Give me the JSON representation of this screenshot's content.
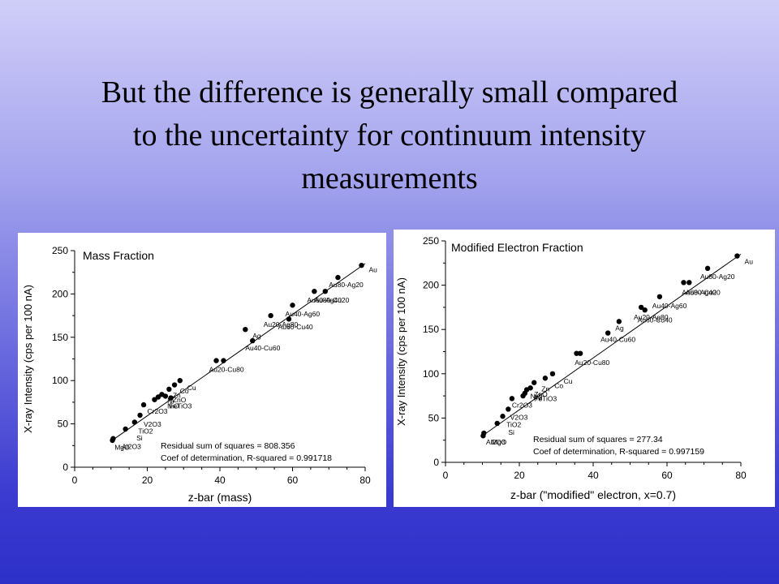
{
  "slide": {
    "title_lines": [
      "But the difference is generally small compared",
      "to the uncertainty for continuum intensity",
      "measurements"
    ]
  },
  "chart_data": [
    {
      "type": "scatter",
      "title": "Mass Fraction",
      "xlabel": "z-bar (mass)",
      "ylabel": "X-ray Intensity (cps per 100 nA)",
      "xlim": [
        0,
        80
      ],
      "ylim": [
        0,
        250
      ],
      "xticks": [
        0,
        20,
        40,
        60,
        80
      ],
      "yticks": [
        0,
        50,
        100,
        150,
        200,
        250
      ],
      "grid": false,
      "points": [
        {
          "x": 10.4,
          "y": 31
        },
        {
          "x": 10.6,
          "y": 33
        },
        {
          "x": 14,
          "y": 44
        },
        {
          "x": 16.5,
          "y": 52
        },
        {
          "x": 18,
          "y": 60
        },
        {
          "x": 19,
          "y": 72
        },
        {
          "x": 22,
          "y": 78
        },
        {
          "x": 23,
          "y": 81
        },
        {
          "x": 24,
          "y": 84
        },
        {
          "x": 25,
          "y": 82
        },
        {
          "x": 26,
          "y": 90
        },
        {
          "x": 26.5,
          "y": 80
        },
        {
          "x": 27.5,
          "y": 95
        },
        {
          "x": 29,
          "y": 100
        },
        {
          "x": 39,
          "y": 123
        },
        {
          "x": 41,
          "y": 123
        },
        {
          "x": 47,
          "y": 159
        },
        {
          "x": 49,
          "y": 146
        },
        {
          "x": 54,
          "y": 175
        },
        {
          "x": 59,
          "y": 171
        },
        {
          "x": 60,
          "y": 187
        },
        {
          "x": 66,
          "y": 203
        },
        {
          "x": 69,
          "y": 203
        },
        {
          "x": 72.5,
          "y": 219
        },
        {
          "x": 79,
          "y": 233
        }
      ],
      "fit_line": {
        "x": [
          10,
          80
        ],
        "y": [
          30,
          235
        ]
      },
      "labels": [
        {
          "text": "Au",
          "x": 81,
          "y": 225
        },
        {
          "text": "Au80-Ag20",
          "x": 70,
          "y": 208
        },
        {
          "text": "Au60-Ag40",
          "x": 64,
          "y": 190
        },
        {
          "text": "Au80-Cu20",
          "x": 66,
          "y": 190
        },
        {
          "text": "Au40-Ag60",
          "x": 58,
          "y": 174
        },
        {
          "text": "Au20-Ag80",
          "x": 52,
          "y": 162
        },
        {
          "text": "Au60-Cu40",
          "x": 56,
          "y": 159
        },
        {
          "text": "Ag",
          "x": 49,
          "y": 149
        },
        {
          "text": "Au40-Cu60",
          "x": 47,
          "y": 135
        },
        {
          "text": "Au20-Cu80",
          "x": 37,
          "y": 110
        },
        {
          "text": "Cu",
          "x": 31,
          "y": 89
        },
        {
          "text": "Co",
          "x": 29,
          "y": 85
        },
        {
          "text": "Zn",
          "x": 27,
          "y": 80
        },
        {
          "text": "ZnO",
          "x": 27,
          "y": 75
        },
        {
          "text": "Ni",
          "x": 25.5,
          "y": 74
        },
        {
          "text": "Cr2O3",
          "x": 20,
          "y": 62
        },
        {
          "text": "NiO",
          "x": 25.5,
          "y": 68
        },
        {
          "text": "FeTiO3",
          "x": 26,
          "y": 68
        },
        {
          "text": "V2O3",
          "x": 19,
          "y": 47
        },
        {
          "text": "TiO2",
          "x": 17.5,
          "y": 39
        },
        {
          "text": "Si",
          "x": 17,
          "y": 31
        },
        {
          "text": "Al2O3",
          "x": 13,
          "y": 21
        },
        {
          "text": "MgO",
          "x": 11,
          "y": 20
        }
      ],
      "annotations": [
        "Residual sum of squares = 808.356",
        "Coef of determination, R-squared = 0.991718"
      ]
    },
    {
      "type": "scatter",
      "title": "Modified Electron Fraction",
      "xlabel": "z-bar (\"modified\" electron, x=0.7)",
      "ylabel": "X-ray Intensity (cps per 100 nA)",
      "xlim": [
        0,
        80
      ],
      "ylim": [
        0,
        250
      ],
      "xticks": [
        0,
        20,
        40,
        60,
        80
      ],
      "yticks": [
        0,
        50,
        100,
        150,
        200,
        250
      ],
      "grid": false,
      "points": [
        {
          "x": 10.2,
          "y": 30
        },
        {
          "x": 10.4,
          "y": 33
        },
        {
          "x": 14,
          "y": 44
        },
        {
          "x": 15.5,
          "y": 52
        },
        {
          "x": 17,
          "y": 60
        },
        {
          "x": 18,
          "y": 72
        },
        {
          "x": 21,
          "y": 75
        },
        {
          "x": 21.5,
          "y": 78
        },
        {
          "x": 22,
          "y": 82
        },
        {
          "x": 23,
          "y": 84
        },
        {
          "x": 24,
          "y": 90
        },
        {
          "x": 27,
          "y": 95
        },
        {
          "x": 29,
          "y": 100
        },
        {
          "x": 35.5,
          "y": 123
        },
        {
          "x": 36.5,
          "y": 123
        },
        {
          "x": 44,
          "y": 146
        },
        {
          "x": 47,
          "y": 159
        },
        {
          "x": 53,
          "y": 175
        },
        {
          "x": 54,
          "y": 172
        },
        {
          "x": 58,
          "y": 187
        },
        {
          "x": 64.5,
          "y": 203
        },
        {
          "x": 66,
          "y": 203
        },
        {
          "x": 71,
          "y": 219
        },
        {
          "x": 79,
          "y": 233
        }
      ],
      "fit_line": {
        "x": [
          10,
          80
        ],
        "y": [
          30,
          235
        ]
      },
      "labels": [
        {
          "text": "Au",
          "x": 81,
          "y": 224
        },
        {
          "text": "Au80-Ag20",
          "x": 69,
          "y": 207
        },
        {
          "text": "Au60-Ag40",
          "x": 64,
          "y": 189
        },
        {
          "text": "Au80-Cu20",
          "x": 65,
          "y": 189
        },
        {
          "text": "Au40-Ag60",
          "x": 56,
          "y": 174
        },
        {
          "text": "Au20-Ag80",
          "x": 51,
          "y": 161
        },
        {
          "text": "Au60-Cu40",
          "x": 52,
          "y": 158
        },
        {
          "text": "Ag",
          "x": 46,
          "y": 149
        },
        {
          "text": "Au40-Cu60",
          "x": 42,
          "y": 136
        },
        {
          "text": "Au20-Cu80",
          "x": 35,
          "y": 110
        },
        {
          "text": "Cu",
          "x": 32,
          "y": 89
        },
        {
          "text": "Co",
          "x": 29.5,
          "y": 84
        },
        {
          "text": "Zn",
          "x": 26,
          "y": 80
        },
        {
          "text": "ZnO",
          "x": 24,
          "y": 74
        },
        {
          "text": "Ni",
          "x": 24.5,
          "y": 70
        },
        {
          "text": "NiO",
          "x": 23,
          "y": 72
        },
        {
          "text": "FeTiO3",
          "x": 24,
          "y": 69
        },
        {
          "text": "Cr2O3",
          "x": 18,
          "y": 62
        },
        {
          "text": "V2O3",
          "x": 17.5,
          "y": 48
        },
        {
          "text": "TiO2",
          "x": 16.5,
          "y": 40
        },
        {
          "text": "Si",
          "x": 17,
          "y": 31
        },
        {
          "text": "Al2O3",
          "x": 11,
          "y": 20
        },
        {
          "text": "MgO",
          "x": 12.5,
          "y": 20
        }
      ],
      "annotations": [
        "Residual sum of squares = 277.34",
        "Coef of determination, R-squared = 0.997159"
      ]
    }
  ]
}
